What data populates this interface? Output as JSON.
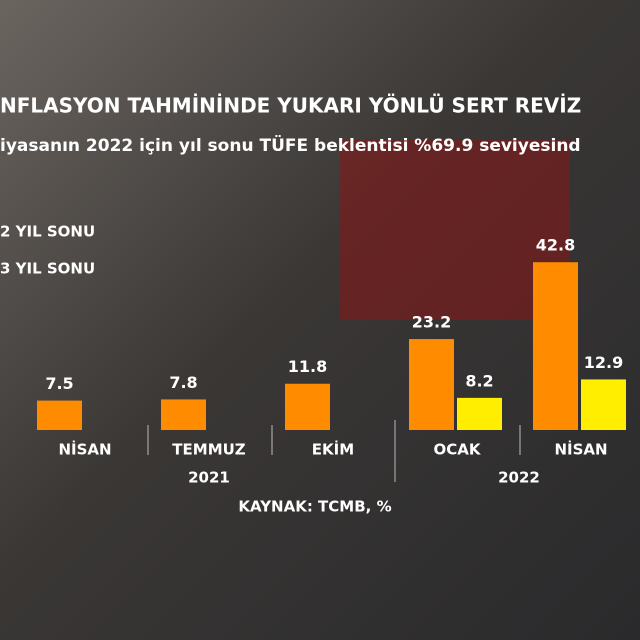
{
  "chart_data": {
    "type": "bar",
    "title": "NFLASYON TAHMİNİNDE YUKARI YÖNLÜ SERT REVİZ",
    "subtitle": "iyasanın 2022 için yıl sonu TÜFE beklentisi %69.9 seviyesind",
    "categories": [
      "NİSAN",
      "TEMMUZ",
      "EKİM",
      "OCAK",
      "NİSAN"
    ],
    "groups": [
      {
        "label": "2021",
        "span": [
          0,
          2
        ]
      },
      {
        "label": "2022",
        "span": [
          3,
          4
        ]
      }
    ],
    "series": [
      {
        "name": "2 YIL SONU",
        "color": "#ff8c00",
        "values": [
          7.5,
          7.8,
          11.8,
          23.2,
          42.8
        ]
      },
      {
        "name": "3 YIL SONU",
        "color": "#ffee00",
        "values": [
          null,
          null,
          null,
          8.2,
          12.9
        ]
      }
    ],
    "source": "KAYNAK: TCMB, %"
  }
}
